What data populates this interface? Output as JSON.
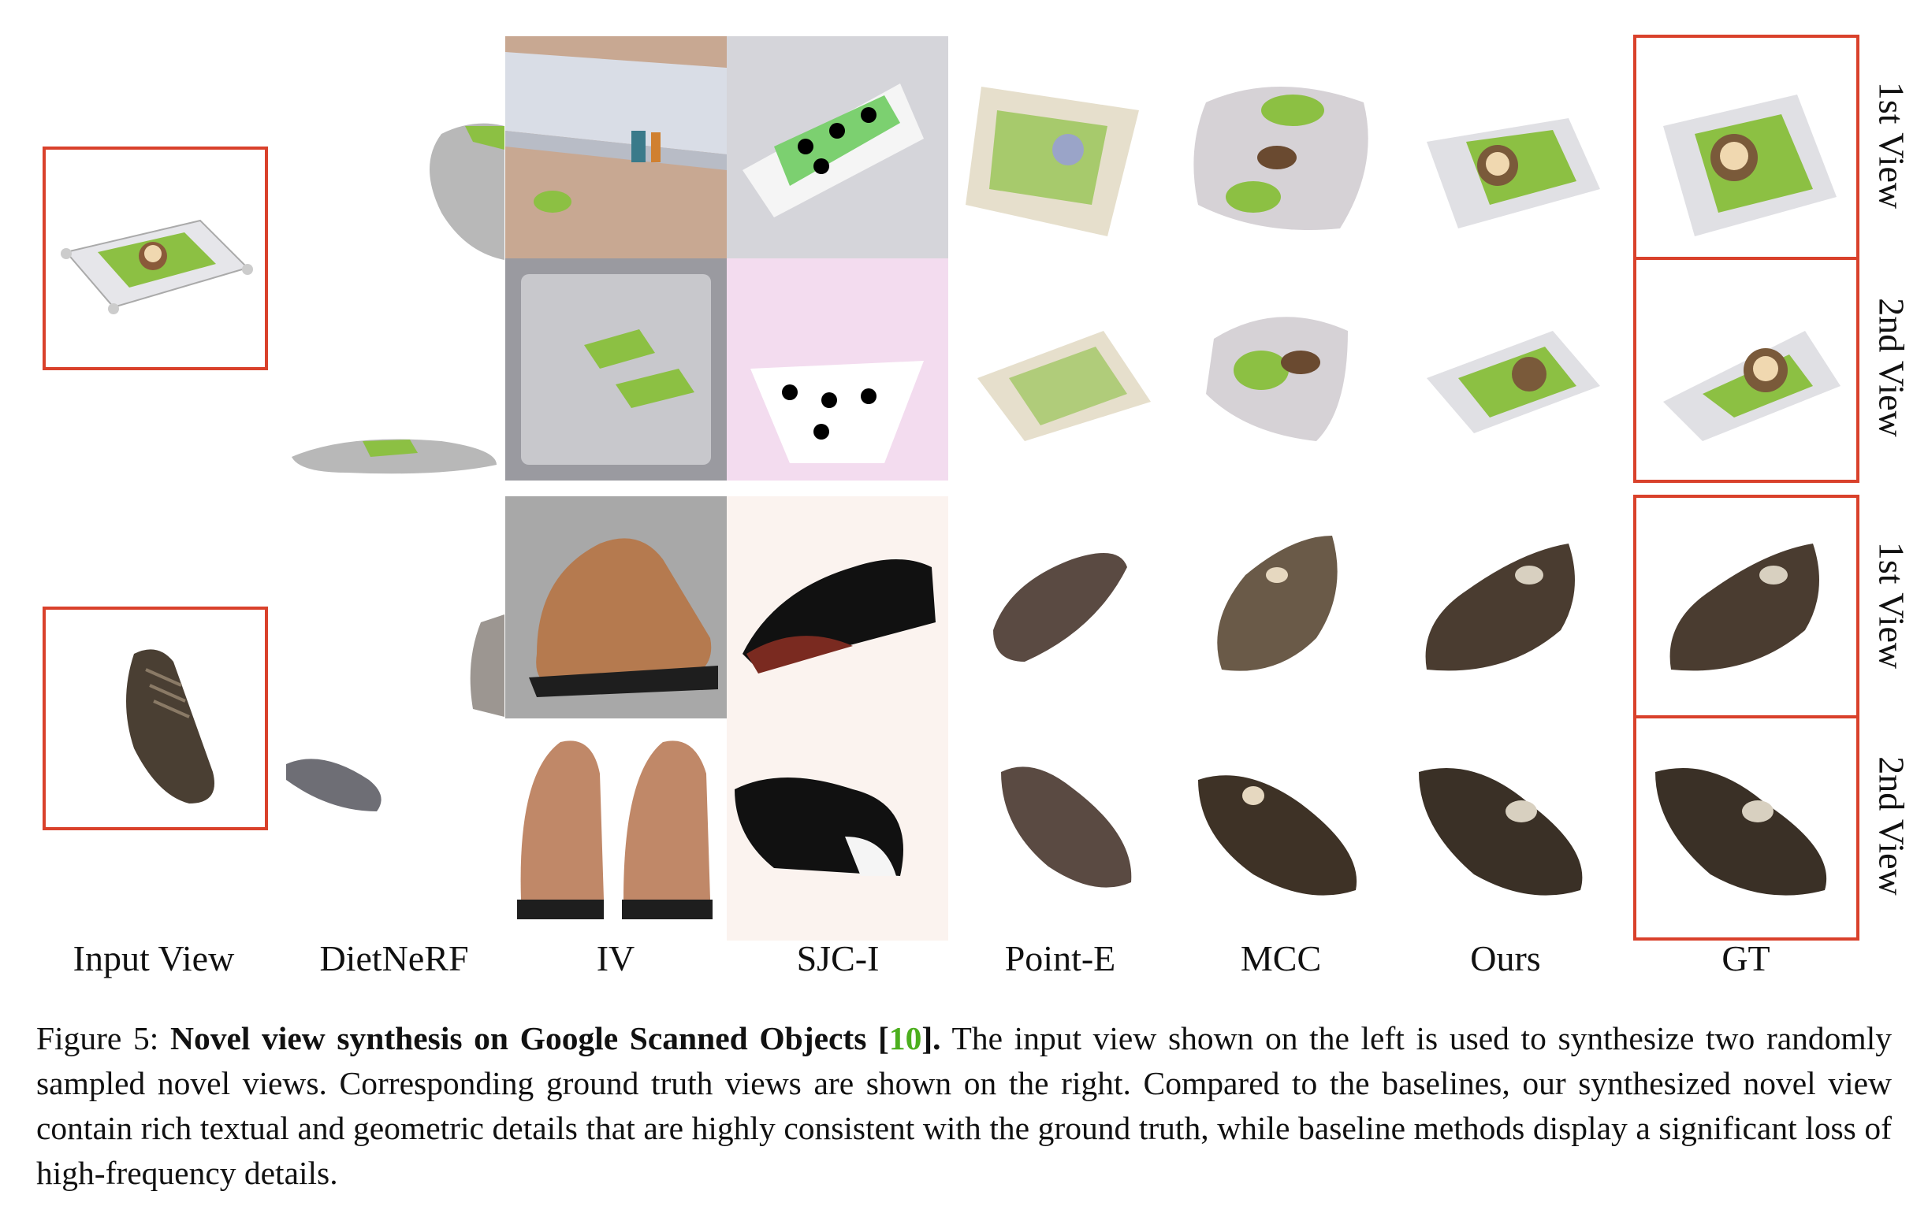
{
  "columns": [
    "Input View",
    "DietNeRF",
    "IV",
    "SJC-I",
    "Point-E",
    "MCC",
    "Ours",
    "GT"
  ],
  "row_labels": [
    "1st View",
    "2nd View",
    "1st View",
    "2nd View"
  ],
  "caption": {
    "prefix": "Figure 5: ",
    "title": "Novel view synthesis on Google Scanned Objects [",
    "cite": "10",
    "title_end": "].",
    "body": " The input view shown on the left is used to synthesize two randomly sampled novel views. Corresponding ground truth views are shown on the right. Compared to the baselines, our synthesized novel view contain rich textual and geometric details that are highly consistent with the ground truth, while baseline methods display a significant loss of high-frequency details."
  },
  "colors": {
    "box": "#d9412b",
    "cite": "#4caf1e"
  },
  "icons": [
    "toy-mat-thumbnail",
    "shoe-thumbnail"
  ]
}
